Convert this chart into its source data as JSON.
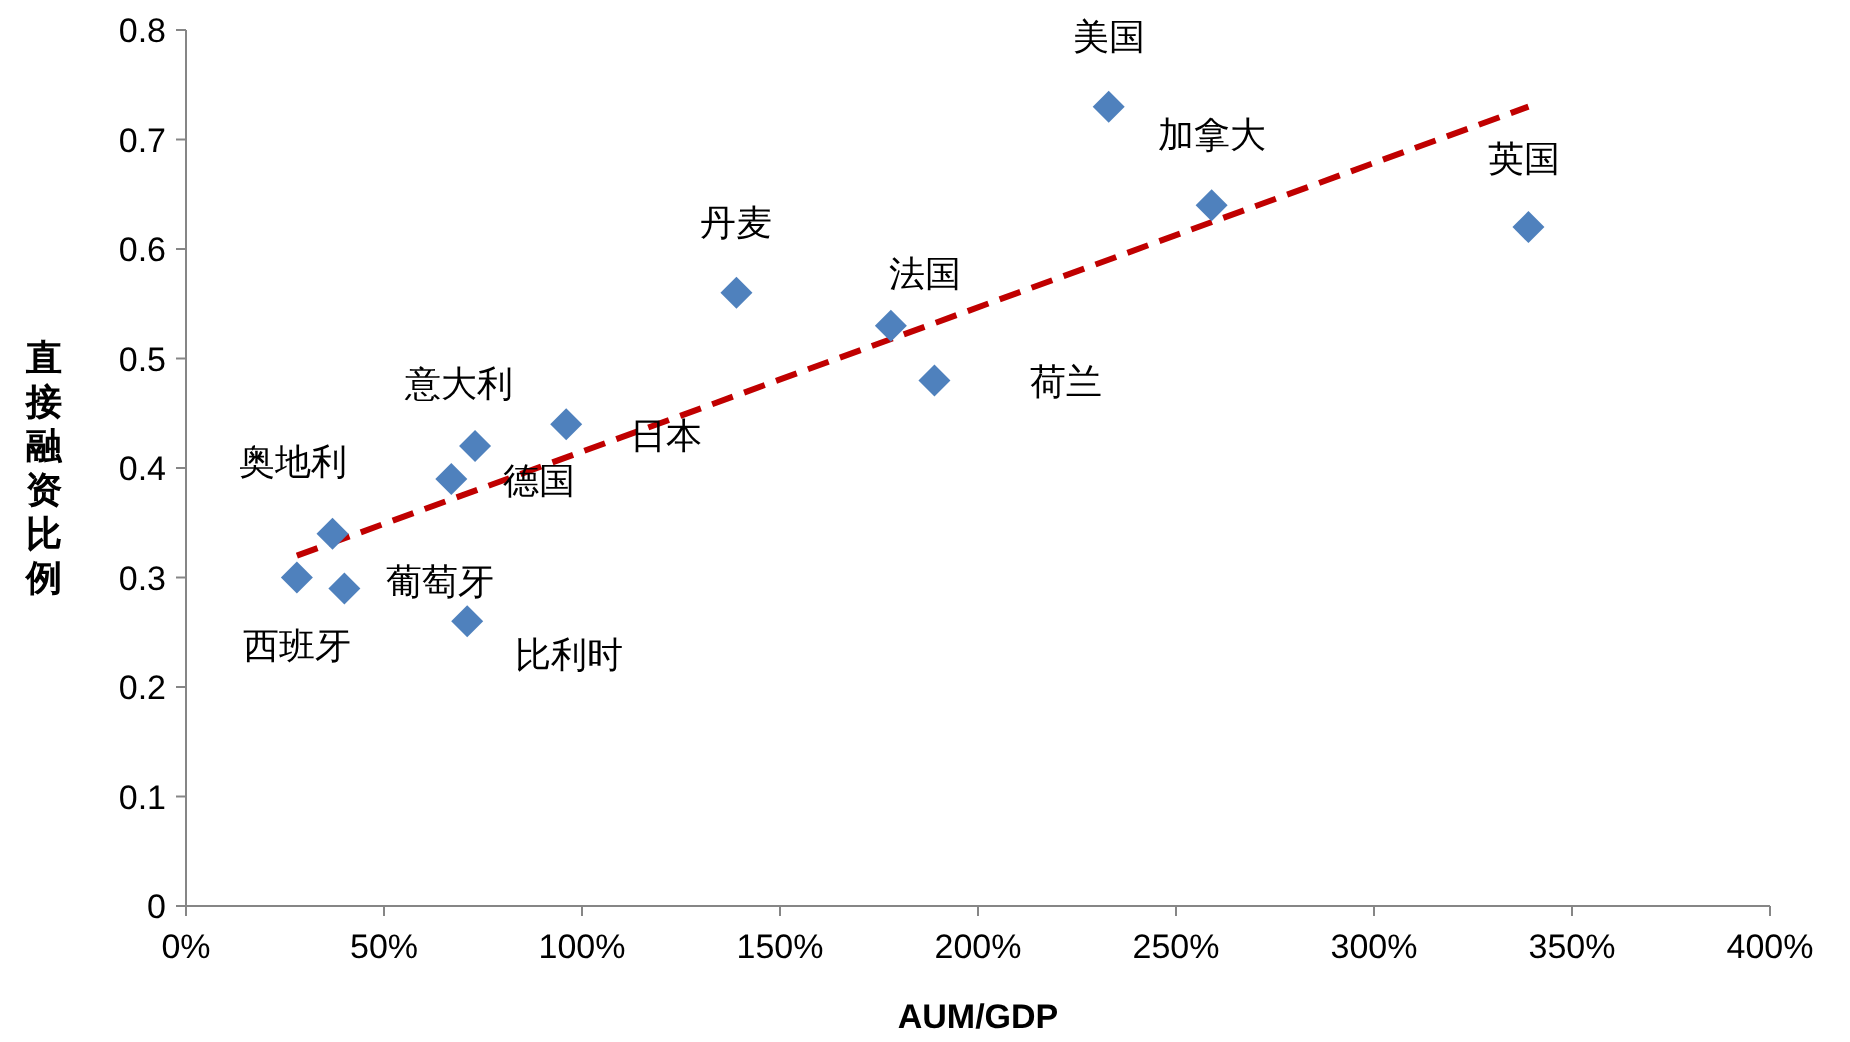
{
  "chart_data": {
    "type": "scatter",
    "xlabel": "AUM/GDP",
    "ylabel": "直接融资比例",
    "xlim": [
      0,
      400
    ],
    "ylim": [
      0,
      0.8
    ],
    "xticks": [
      {
        "value": 0,
        "label": "0%"
      },
      {
        "value": 50,
        "label": "50%"
      },
      {
        "value": 100,
        "label": "100%"
      },
      {
        "value": 150,
        "label": "150%"
      },
      {
        "value": 200,
        "label": "200%"
      },
      {
        "value": 250,
        "label": "250%"
      },
      {
        "value": 300,
        "label": "300%"
      },
      {
        "value": 350,
        "label": "350%"
      },
      {
        "value": 400,
        "label": "400%"
      }
    ],
    "yticks": [
      0,
      0.1,
      0.2,
      0.3,
      0.4,
      0.5,
      0.6,
      0.7,
      0.8
    ],
    "grid": false,
    "series": [
      {
        "type": "scatter",
        "marker": "diamond",
        "color": "#4f81bd",
        "x": [
          28,
          37,
          40,
          67,
          73,
          71,
          96,
          139,
          178,
          189,
          233,
          259,
          339
        ],
        "values": [
          0.3,
          0.34,
          0.29,
          0.39,
          0.42,
          0.26,
          0.44,
          0.56,
          0.53,
          0.48,
          0.73,
          0.64,
          0.62
        ]
      },
      {
        "type": "line",
        "marker": "none",
        "color": "#c00000",
        "line_style": "dashed",
        "x": [
          28,
          339
        ],
        "values": [
          0.32,
          0.73
        ]
      }
    ],
    "annotations": [
      {
        "text": "西班牙",
        "x": 28,
        "y": 0.3
      },
      {
        "text": "奥地利",
        "x": 37,
        "y": 0.34
      },
      {
        "text": "葡萄牙",
        "x": 40,
        "y": 0.29
      },
      {
        "text": "德国",
        "x": 67,
        "y": 0.39
      },
      {
        "text": "意大利",
        "x": 73,
        "y": 0.42
      },
      {
        "text": "比利时",
        "x": 71,
        "y": 0.26
      },
      {
        "text": "日本",
        "x": 96,
        "y": 0.44
      },
      {
        "text": "丹麦",
        "x": 139,
        "y": 0.56
      },
      {
        "text": "法国",
        "x": 178,
        "y": 0.53
      },
      {
        "text": "荷兰",
        "x": 189,
        "y": 0.48
      },
      {
        "text": "美国",
        "x": 233,
        "y": 0.73
      },
      {
        "text": "加拿大",
        "x": 259,
        "y": 0.64
      },
      {
        "text": "英国",
        "x": 339,
        "y": 0.62
      }
    ]
  }
}
